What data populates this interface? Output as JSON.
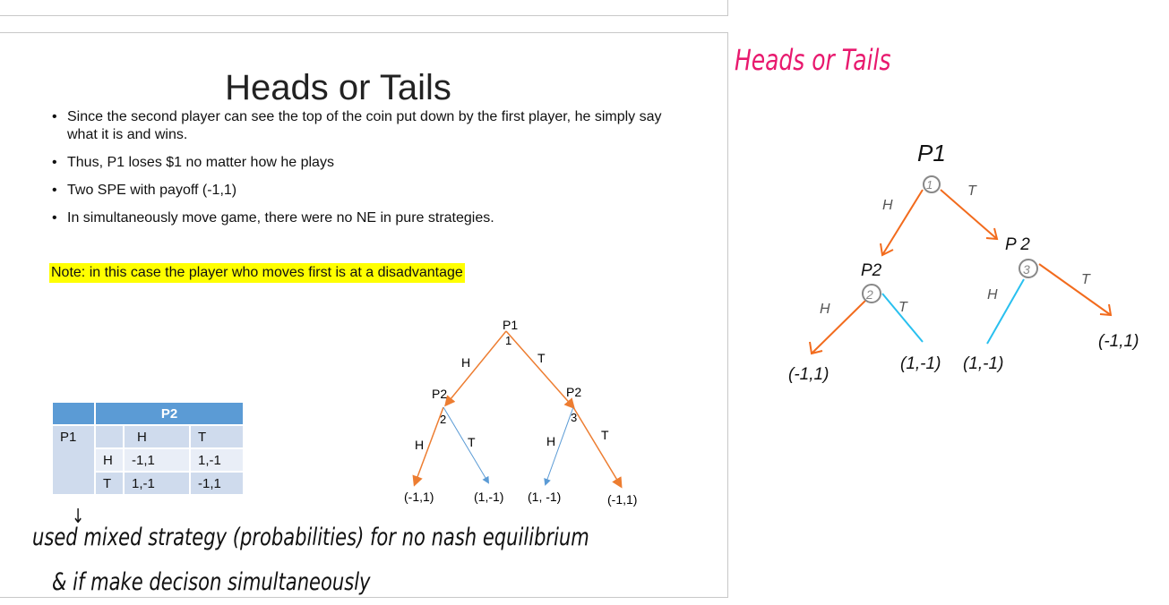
{
  "slide": {
    "title": "Heads or Tails",
    "bullets": [
      "Since the second player can see the top of the coin put down by the first player, he simply say what it is and wins.",
      "Thus, P1 loses $1 no matter how he plays",
      "Two SPE with payoff (-1,1)",
      "In simultaneously move game, there were no NE in pure strategies."
    ],
    "note": "Note: in this case the player who moves first is at a disadvantage",
    "table": {
      "col_player": "P2",
      "row_player": "P1",
      "columns": [
        "H",
        "T"
      ],
      "rows": [
        {
          "label": "H",
          "cells": [
            "-1,1",
            "1,-1"
          ]
        },
        {
          "label": "T",
          "cells": [
            "1,-1",
            "-1,1"
          ]
        }
      ]
    },
    "tree": {
      "root": "P1",
      "root_num": "1",
      "left_node": "P2",
      "left_num": "2",
      "right_node": "P2",
      "right_num": "3",
      "edge_h": "H",
      "edge_t": "T",
      "payoffs": [
        "(-1,1)",
        "(1,-1)",
        "(1, -1)",
        "(-1,1)"
      ],
      "colors": {
        "equilibrium": "#ed7d31",
        "other": "#5b9bd5"
      }
    }
  },
  "handwritten": {
    "arrow": "↓",
    "line1": "used mixed strategy (probabilities) for no nash equilibrium",
    "line2": "& if make decison simultaneously",
    "title": "Heads or Tails",
    "title_color": "#e8196e",
    "tree": {
      "root": "P1",
      "root_num": "1",
      "left_node": "P2",
      "left_num": "2",
      "right_node": "P 2",
      "right_num": "3",
      "edge_h": "H",
      "edge_t": "T",
      "payoffs": [
        "(-1,1)",
        "(1,-1)",
        "(1,-1)",
        "(-1,1)"
      ],
      "colors": {
        "equilibrium": "#f26b1d",
        "other": "#29c0ef",
        "circle": "#888888"
      }
    }
  }
}
